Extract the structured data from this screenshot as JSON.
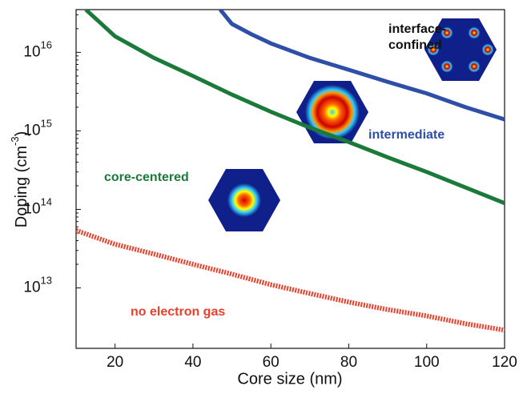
{
  "chart_data": {
    "type": "line",
    "log_y": true,
    "xlabel": "Core size (nm)",
    "ylabel": "Doping (cm",
    "ylabel_exponent": "-3",
    "ylabel_end": ")",
    "xlim": [
      10,
      120
    ],
    "xticks": [
      20,
      40,
      60,
      80,
      100,
      120
    ],
    "ylim": [
      1700000000000.0,
      3.5e+16
    ],
    "yticks": [
      {
        "value": 10000000000000.0,
        "label": "10",
        "exponent": "13"
      },
      {
        "value": 100000000000000.0,
        "label": "10",
        "exponent": "14"
      },
      {
        "value": 1000000000000000.0,
        "label": "10",
        "exponent": "15"
      },
      {
        "value": 1e+16,
        "label": "10",
        "exponent": "16"
      }
    ],
    "series": [
      {
        "color": "#2e4fa8",
        "style": "solid",
        "x": [
          47,
          50,
          55,
          60,
          70,
          80,
          90,
          100,
          110,
          120
        ],
        "values": [
          3.5e+16,
          2.3e+16,
          1.7e+16,
          1.3e+16,
          8500000000000000.0,
          6000000000000000.0,
          4200000000000000.0,
          3000000000000000.0,
          2000000000000000.0,
          1400000000000000.0
        ]
      },
      {
        "color": "#1b7a3a",
        "style": "solid",
        "x": [
          12.5,
          20,
          30,
          40,
          50,
          60,
          70,
          80,
          90,
          100,
          110,
          120
        ],
        "values": [
          3.5e+16,
          1.6e+16,
          8500000000000000.0,
          5000000000000000.0,
          2900000000000000.0,
          1750000000000000.0,
          1100000000000000.0,
          720000000000000.0,
          460000000000000.0,
          300000000000000.0,
          190000000000000.0,
          120000000000000.0
        ]
      },
      {
        "color": "#e8412c",
        "style": "dotted",
        "x": [
          10,
          20,
          30,
          40,
          50,
          60,
          70,
          80,
          90,
          100,
          110,
          120
        ],
        "values": [
          54000000000000.0,
          36000000000000.0,
          27000000000000.0,
          20000000000000.0,
          15000000000000.0,
          11000000000000.0,
          8500000000000.0,
          6600000000000.0,
          5300000000000.0,
          4400000000000.0,
          3500000000000.0,
          2900000000000.0
        ]
      }
    ],
    "annotations": [
      {
        "text": "interface-",
        "color": "#111111"
      },
      {
        "text": "confined",
        "color": "#111111"
      },
      {
        "text": "intermediate",
        "color": "#2e4fa8"
      },
      {
        "text": "core-centered",
        "color": "#1b7a3a"
      },
      {
        "text": "no electron gas",
        "color": "#e8412c"
      }
    ]
  }
}
